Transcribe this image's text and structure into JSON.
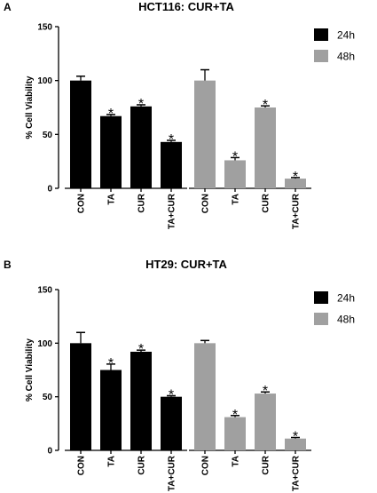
{
  "chart_data": [
    {
      "type": "bar",
      "panel": "A",
      "title": "HCT116: CUR+TA",
      "ylabel": "% Cell Viability",
      "ylim": [
        0,
        150
      ],
      "yticks": [
        0,
        50,
        100,
        150
      ],
      "categories": [
        "CON",
        "TA",
        "CUR",
        "TA+CUR"
      ],
      "series": [
        {
          "name": "24h",
          "color": "#000000",
          "values": [
            100,
            67,
            76,
            43
          ],
          "errors": [
            4,
            1.5,
            1.5,
            1.5
          ],
          "significant": [
            false,
            true,
            true,
            true
          ]
        },
        {
          "name": "48h",
          "color": "#a0a0a0",
          "values": [
            100,
            26,
            75,
            9
          ],
          "errors": [
            10,
            2.5,
            1.5,
            1
          ],
          "significant": [
            false,
            true,
            true,
            true
          ]
        }
      ],
      "significance_marker": "*",
      "legend_position": "top-right"
    },
    {
      "type": "bar",
      "panel": "B",
      "title": "HT29: CUR+TA",
      "ylabel": "% Cell Viability",
      "ylim": [
        0,
        150
      ],
      "yticks": [
        0,
        50,
        100,
        150
      ],
      "categories": [
        "CON",
        "TA",
        "CUR",
        "TA+CUR"
      ],
      "series": [
        {
          "name": "24h",
          "color": "#000000",
          "values": [
            100,
            75,
            92,
            50
          ],
          "errors": [
            10,
            5.5,
            1.5,
            1
          ],
          "significant": [
            false,
            true,
            true,
            true
          ]
        },
        {
          "name": "48h",
          "color": "#a0a0a0",
          "values": [
            100,
            31,
            53,
            11
          ],
          "errors": [
            2.5,
            1.5,
            1.5,
            1
          ],
          "significant": [
            false,
            true,
            true,
            true
          ]
        }
      ],
      "significance_marker": "*",
      "legend_position": "top-right"
    }
  ]
}
